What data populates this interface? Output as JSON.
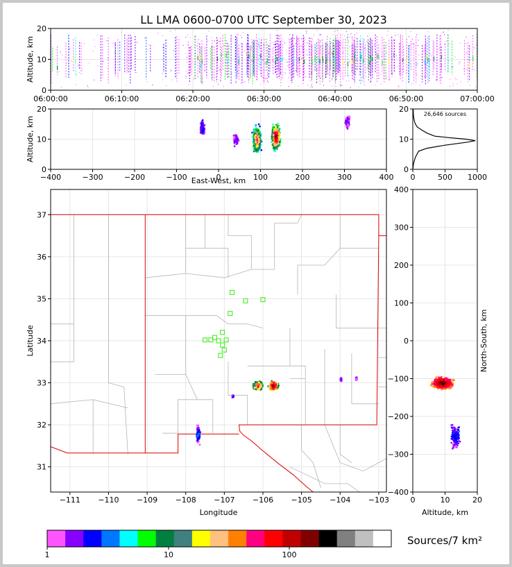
{
  "title": "LL LMA 0600-0700 UTC September 30, 2023",
  "colorbar": {
    "label": "Sources/7 km²",
    "ticks": [
      "1",
      "10",
      "100"
    ],
    "colors": [
      "#ff55ff",
      "#8800ff",
      "#0000ff",
      "#0077ff",
      "#00ffff",
      "#00ff00",
      "#008040",
      "#408080",
      "#ffff00",
      "#ffc080",
      "#ff8000",
      "#ff0080",
      "#ff0000",
      "#c00000",
      "#800000",
      "#000000",
      "#808080",
      "#c0c0c0",
      "#ffffff"
    ]
  },
  "chart_data": [
    {
      "id": "time-height",
      "type": "heatmap",
      "ylabel": "Altitude, km",
      "ylim": [
        0,
        20
      ],
      "yticks": [
        "0",
        "10",
        "20"
      ],
      "xticks": [
        "06:00:00",
        "06:10:00",
        "06:20:00",
        "06:30:00",
        "06:40:00",
        "06:50:00",
        "07:00:00"
      ]
    },
    {
      "id": "ew-height",
      "type": "heatmap",
      "xlabel": "East-West, km",
      "ylabel": "Altitude, km",
      "xlim": [
        -400,
        400
      ],
      "ylim": [
        0,
        20
      ],
      "xticks": [
        "−400",
        "−300",
        "−200",
        "−100",
        "0",
        "100",
        "200",
        "300",
        "400"
      ],
      "yticks": [
        "0",
        "10",
        "20"
      ],
      "clusters": [
        {
          "x": -40,
          "z": 14,
          "level": 2
        },
        {
          "x": 40,
          "z": 10,
          "level": 1
        },
        {
          "x": 90,
          "z": 10,
          "level": 12
        },
        {
          "x": 135,
          "z": 11,
          "level": 15
        },
        {
          "x": 305,
          "z": 16,
          "level": 1
        }
      ]
    },
    {
      "id": "height-histogram",
      "type": "line",
      "annotation": "26,646 sources",
      "xlim": [
        0,
        1000
      ],
      "ylim": [
        0,
        20
      ],
      "xticks": [
        "0",
        "500",
        "1000"
      ],
      "yticks": [
        "0",
        "10",
        "20"
      ],
      "profile": [
        [
          0,
          0
        ],
        [
          12,
          2
        ],
        [
          40,
          4
        ],
        [
          90,
          6
        ],
        [
          220,
          7
        ],
        [
          500,
          8
        ],
        [
          850,
          9
        ],
        [
          970,
          9.5
        ],
        [
          820,
          10
        ],
        [
          560,
          10.5
        ],
        [
          340,
          11
        ],
        [
          220,
          12
        ],
        [
          140,
          13
        ],
        [
          70,
          14
        ],
        [
          40,
          15
        ],
        [
          25,
          16
        ],
        [
          15,
          17
        ],
        [
          10,
          18
        ],
        [
          5,
          20
        ]
      ]
    },
    {
      "id": "plan-view",
      "type": "heatmap",
      "xlabel": "Longitude",
      "ylabel": "Latitude",
      "xlim": [
        -111.5,
        -102.8
      ],
      "ylim": [
        30.4,
        37.6
      ],
      "xticks": [
        "−111",
        "−110",
        "−109",
        "−108",
        "−107",
        "−106",
        "−105",
        "−104",
        "−103"
      ],
      "yticks": [
        "31",
        "32",
        "33",
        "34",
        "35",
        "36",
        "37"
      ],
      "stations": [
        [
          -106.8,
          35.15
        ],
        [
          -106.45,
          34.95
        ],
        [
          -106.0,
          34.98
        ],
        [
          -106.85,
          34.65
        ],
        [
          -107.05,
          34.2
        ],
        [
          -107.25,
          34.08
        ],
        [
          -107.35,
          34.02
        ],
        [
          -107.5,
          34.02
        ],
        [
          -107.15,
          34.0
        ],
        [
          -106.95,
          34.02
        ],
        [
          -107.05,
          33.9
        ],
        [
          -107.0,
          33.78
        ],
        [
          -107.1,
          33.65
        ]
      ],
      "clusters": [
        {
          "lon": -106.15,
          "lat": 32.95,
          "level": 12
        },
        {
          "lon": -105.75,
          "lat": 32.95,
          "level": 15
        },
        {
          "lon": -107.7,
          "lat": 31.8,
          "level": 3
        },
        {
          "lon": -106.8,
          "lat": 32.7,
          "level": 1
        },
        {
          "lon": -104.0,
          "lat": 33.1,
          "level": 1
        },
        {
          "lon": -103.6,
          "lat": 33.12,
          "level": 1
        }
      ]
    },
    {
      "id": "height-ns",
      "type": "heatmap",
      "xlabel": "Altitude, km",
      "ylabel": "North-South, km",
      "xlim": [
        0,
        20
      ],
      "ylim": [
        -400,
        400
      ],
      "xticks": [
        "0",
        "10",
        "20"
      ],
      "yticks": [
        "−400",
        "−300",
        "−200",
        "−100",
        "0",
        "100",
        "200",
        "300",
        "400"
      ],
      "clusters": [
        {
          "z": 9,
          "y": -110,
          "level": 15
        },
        {
          "z": 13,
          "y": -250,
          "level": 2
        }
      ]
    }
  ]
}
